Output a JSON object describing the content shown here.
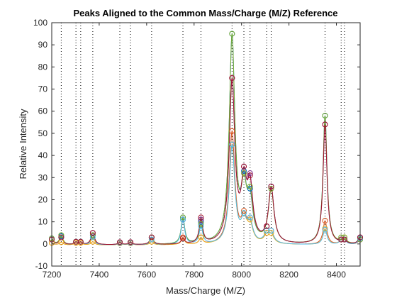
{
  "chart_data": {
    "type": "line",
    "title": "Peaks Aligned to the Common Mass/Charge (M/Z) Reference",
    "xlabel": "Mass/Charge (M/Z)",
    "ylabel": "Relative Intensity",
    "xlim": [
      7200,
      8500
    ],
    "ylim": [
      -10,
      100
    ],
    "xticks": [
      7200,
      7400,
      7600,
      7800,
      8000,
      8200,
      8400
    ],
    "yticks": [
      -10,
      0,
      10,
      20,
      30,
      40,
      50,
      60,
      70,
      80,
      90,
      100
    ],
    "grid": false,
    "reference_lines_x": [
      7200,
      7240,
      7302,
      7322,
      7373,
      7487,
      7532,
      7621,
      7753,
      7829,
      7960,
      8010,
      8036,
      8106,
      8125,
      8352,
      8420,
      8434,
      8500
    ],
    "series": [
      {
        "color": "#0072BD",
        "peaks": [
          [
            7200,
            2.5
          ],
          [
            7240,
            3.5
          ],
          [
            7302,
            1
          ],
          [
            7322,
            1
          ],
          [
            7373,
            4
          ],
          [
            7487,
            0.5
          ],
          [
            7532,
            0.5
          ],
          [
            7621,
            3
          ],
          [
            7753,
            12
          ],
          [
            7829,
            10
          ],
          [
            7960,
            95
          ],
          [
            8010,
            33
          ],
          [
            8036,
            25
          ],
          [
            8106,
            6
          ],
          [
            8125,
            26
          ],
          [
            8352,
            58
          ],
          [
            8420,
            2
          ],
          [
            8434,
            2
          ],
          [
            8500,
            2
          ]
        ]
      },
      {
        "color": "#D95319",
        "peaks": [
          [
            7200,
            0.5
          ],
          [
            7240,
            0.8
          ],
          [
            7302,
            0.5
          ],
          [
            7322,
            0.5
          ],
          [
            7373,
            1
          ],
          [
            7487,
            0.3
          ],
          [
            7532,
            0.3
          ],
          [
            7621,
            1
          ],
          [
            7753,
            3
          ],
          [
            7829,
            3
          ],
          [
            7960,
            51
          ],
          [
            8010,
            15
          ],
          [
            8036,
            12
          ],
          [
            8106,
            5
          ],
          [
            8125,
            6
          ],
          [
            8352,
            10.5
          ],
          [
            8420,
            2
          ],
          [
            8434,
            2
          ],
          [
            8500,
            2
          ]
        ]
      },
      {
        "color": "#EDB120",
        "peaks": [
          [
            7200,
            0.5
          ],
          [
            7240,
            0.8
          ],
          [
            7302,
            0.5
          ],
          [
            7322,
            0.5
          ],
          [
            7373,
            1
          ],
          [
            7487,
            0.3
          ],
          [
            7532,
            0.3
          ],
          [
            7621,
            1
          ],
          [
            7753,
            2.5
          ],
          [
            7829,
            3
          ],
          [
            7960,
            45
          ],
          [
            8010,
            14
          ],
          [
            8036,
            11
          ],
          [
            8106,
            5
          ],
          [
            8125,
            5
          ],
          [
            8352,
            7
          ],
          [
            8420,
            2
          ],
          [
            8434,
            3
          ],
          [
            8500,
            2.5
          ]
        ]
      },
      {
        "color": "#7E2F8E",
        "peaks": [
          [
            7200,
            2
          ],
          [
            7240,
            3
          ],
          [
            7302,
            1
          ],
          [
            7322,
            1
          ],
          [
            7373,
            5
          ],
          [
            7487,
            0.8
          ],
          [
            7532,
            0.8
          ],
          [
            7621,
            3
          ],
          [
            7753,
            11
          ],
          [
            7829,
            11
          ],
          [
            7960,
            75
          ],
          [
            8010,
            35
          ],
          [
            8036,
            32
          ],
          [
            8106,
            8
          ],
          [
            8125,
            26
          ],
          [
            8352,
            54
          ],
          [
            8420,
            2
          ],
          [
            8434,
            2
          ],
          [
            8500,
            3
          ]
        ]
      },
      {
        "color": "#77AC30",
        "peaks": [
          [
            7200,
            2.5
          ],
          [
            7240,
            4
          ],
          [
            7302,
            1
          ],
          [
            7322,
            1
          ],
          [
            7373,
            4
          ],
          [
            7487,
            0.5
          ],
          [
            7532,
            0.5
          ],
          [
            7621,
            3
          ],
          [
            7753,
            12
          ],
          [
            7829,
            9
          ],
          [
            7960,
            95
          ],
          [
            8010,
            32
          ],
          [
            8036,
            26
          ],
          [
            8106,
            6
          ],
          [
            8125,
            25
          ],
          [
            8352,
            58
          ],
          [
            8420,
            3
          ],
          [
            8434,
            3
          ],
          [
            8500,
            2
          ]
        ]
      },
      {
        "color": "#4DBEEE",
        "peaks": [
          [
            7200,
            2
          ],
          [
            7240,
            3
          ],
          [
            7302,
            1
          ],
          [
            7322,
            1
          ],
          [
            7373,
            3
          ],
          [
            7487,
            0.5
          ],
          [
            7532,
            0.5
          ],
          [
            7621,
            2
          ],
          [
            7753,
            11
          ],
          [
            7829,
            8
          ],
          [
            7960,
            45
          ],
          [
            8010,
            14
          ],
          [
            8036,
            12
          ],
          [
            8106,
            6
          ],
          [
            8125,
            6
          ],
          [
            8352,
            6.5
          ],
          [
            8420,
            2
          ],
          [
            8434,
            2
          ],
          [
            8500,
            2.5
          ]
        ]
      },
      {
        "color": "#A2142F",
        "peaks": [
          [
            7200,
            2
          ],
          [
            7240,
            3
          ],
          [
            7302,
            1
          ],
          [
            7322,
            1
          ],
          [
            7373,
            5
          ],
          [
            7487,
            0.8
          ],
          [
            7532,
            0.8
          ],
          [
            7621,
            3
          ],
          [
            7753,
            2.5
          ],
          [
            7829,
            12
          ],
          [
            7960,
            75
          ],
          [
            8010,
            35
          ],
          [
            8036,
            31
          ],
          [
            8106,
            8
          ],
          [
            8125,
            26
          ],
          [
            8352,
            54
          ],
          [
            8420,
            2
          ],
          [
            8434,
            2
          ],
          [
            8500,
            3
          ]
        ]
      }
    ]
  }
}
